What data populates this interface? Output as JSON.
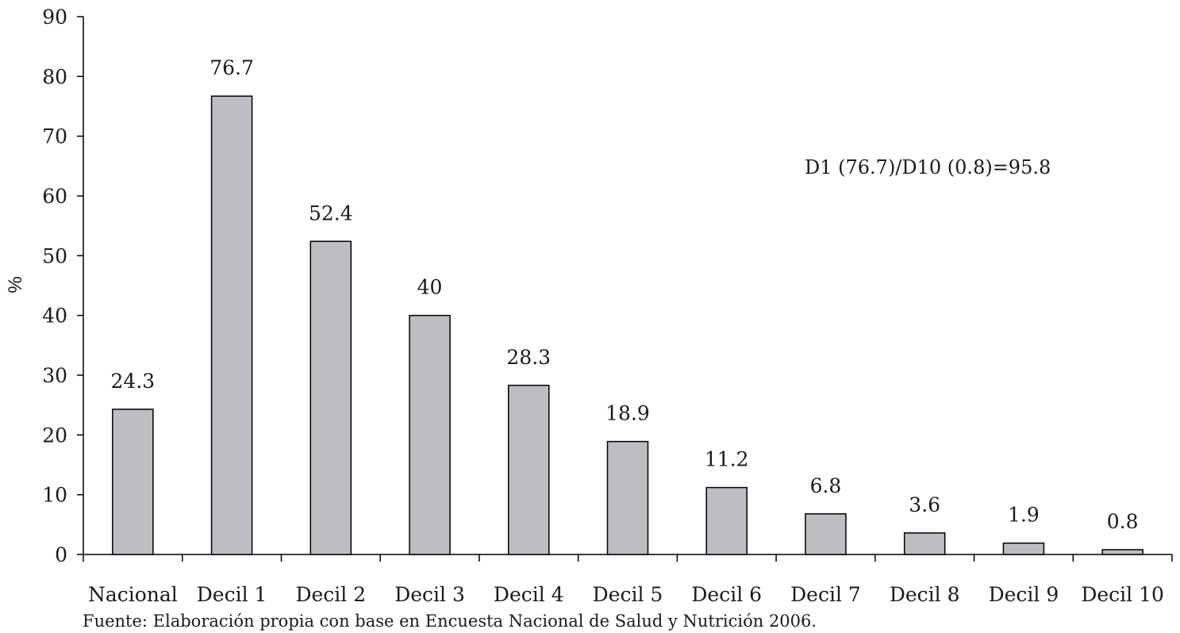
{
  "chart_data": {
    "type": "bar",
    "categories": [
      "Nacional",
      "Decil 1",
      "Decil 2",
      "Decil 3",
      "Decil 4",
      "Decil 5",
      "Decil 6",
      "Decil 7",
      "Decil 8",
      "Decil 9",
      "Decil 10"
    ],
    "values": [
      24.3,
      76.7,
      52.4,
      40,
      28.3,
      18.9,
      11.2,
      6.8,
      3.6,
      1.9,
      0.8
    ],
    "value_labels": [
      "24.3",
      "76.7",
      "52.4",
      "40",
      "28.3",
      "18.9",
      "11.2",
      "6.8",
      "3.6",
      "1.9",
      "0.8"
    ],
    "ylabel": "%",
    "xlabel": "",
    "ylim": [
      0,
      90
    ],
    "yticks": [
      0,
      10,
      20,
      30,
      40,
      50,
      60,
      70,
      80,
      90
    ],
    "grid": false,
    "legend": "none",
    "annotation": "D1 (76.7)/D10 (0.8)=95.8",
    "source": "Fuente: Elaboración propia con base en Encuesta Nacional de Salud y Nutrición 2006.",
    "bar_color": "#bdbec2",
    "bar_edge_color": "#000000"
  }
}
